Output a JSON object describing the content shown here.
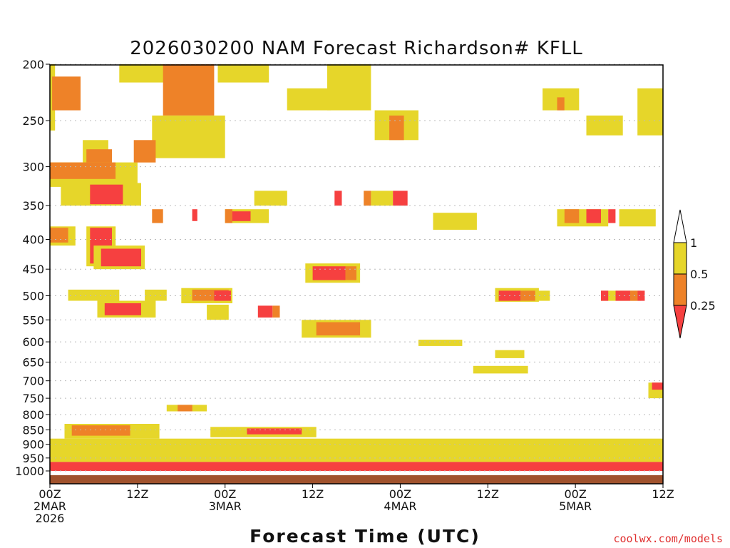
{
  "chart_data": {
    "type": "heatmap",
    "title": "2026030200 NAM Forecast Richardson# KFLL",
    "xlabel": "Forecast Time (UTC)",
    "ylabel": "",
    "credit": "coolwx.com/models",
    "x_range_hours": [
      0,
      84
    ],
    "y_pressure_range_hPa": [
      200,
      1000
    ],
    "y_ticks": [
      "200",
      "250",
      "300",
      "350",
      "400",
      "450",
      "500",
      "550",
      "600",
      "650",
      "700",
      "750",
      "800",
      "850",
      "900",
      "950",
      "1000"
    ],
    "x_ticks": [
      {
        "hour": 0,
        "lines": [
          "00Z",
          "2MAR",
          "2026"
        ]
      },
      {
        "hour": 12,
        "lines": [
          "12Z"
        ]
      },
      {
        "hour": 24,
        "lines": [
          "00Z",
          "3MAR"
        ]
      },
      {
        "hour": 36,
        "lines": [
          "12Z"
        ]
      },
      {
        "hour": 48,
        "lines": [
          "00Z",
          "4MAR"
        ]
      },
      {
        "hour": 60,
        "lines": [
          "12Z"
        ]
      },
      {
        "hour": 72,
        "lines": [
          "00Z",
          "5MAR"
        ]
      },
      {
        "hour": 84,
        "lines": [
          "12Z"
        ]
      }
    ],
    "legend": {
      "placement": "right",
      "levels": [
        "1",
        "0.5",
        "0.25"
      ],
      "bins": [
        {
          "name": "> 1",
          "color": "#ffffff"
        },
        {
          "name": "0.5 - 1",
          "color": "#e6d62a"
        },
        {
          "name": "0.25 - 0.5",
          "color": "#ee8228"
        },
        {
          "name": "< 0.25",
          "color": "#f64040"
        }
      ]
    },
    "colors": {
      "low": "#f64040",
      "mid": "#ee8228",
      "high": "#e6d62a",
      "ground": "#a0522d",
      "grid": "#bbbbbb"
    },
    "regions": [
      {
        "bin": "high",
        "t": [
          0,
          0.7
        ],
        "p": [
          200,
          260
        ]
      },
      {
        "bin": "low",
        "t": [
          0.5,
          3.6
        ],
        "p": [
          215,
          235
        ]
      },
      {
        "bin": "mid",
        "t": [
          0.3,
          4.2
        ],
        "p": [
          210,
          240
        ]
      },
      {
        "bin": "high",
        "t": [
          4.5,
          8
        ],
        "p": [
          270,
          300
        ]
      },
      {
        "bin": "mid",
        "t": [
          5,
          8.5
        ],
        "p": [
          280,
          320
        ]
      },
      {
        "bin": "high",
        "t": [
          0,
          12
        ],
        "p": [
          295,
          325
        ]
      },
      {
        "bin": "mid",
        "t": [
          0,
          9
        ],
        "p": [
          295,
          315
        ]
      },
      {
        "bin": "high",
        "t": [
          1.5,
          12.5
        ],
        "p": [
          320,
          350
        ]
      },
      {
        "bin": "low",
        "t": [
          5.5,
          10
        ],
        "p": [
          322,
          348
        ]
      },
      {
        "bin": "high",
        "t": [
          9.5,
          19
        ],
        "p": [
          200,
          215
        ]
      },
      {
        "bin": "mid",
        "t": [
          15.5,
          22.5
        ],
        "p": [
          200,
          245
        ]
      },
      {
        "bin": "high",
        "t": [
          14,
          24
        ],
        "p": [
          245,
          290
        ]
      },
      {
        "bin": "mid",
        "t": [
          11.5,
          14.5
        ],
        "p": [
          270,
          295
        ]
      },
      {
        "bin": "high",
        "t": [
          23,
          30
        ],
        "p": [
          200,
          215
        ]
      },
      {
        "bin": "high",
        "t": [
          0,
          3.5
        ],
        "p": [
          380,
          410
        ]
      },
      {
        "bin": "mid",
        "t": [
          0,
          2.5
        ],
        "p": [
          382,
          405
        ]
      },
      {
        "bin": "high",
        "t": [
          5,
          9
        ],
        "p": [
          380,
          445
        ]
      },
      {
        "bin": "low",
        "t": [
          5.5,
          8.5
        ],
        "p": [
          382,
          440
        ]
      },
      {
        "bin": "high",
        "t": [
          6,
          13
        ],
        "p": [
          410,
          450
        ]
      },
      {
        "bin": "low",
        "t": [
          7,
          12.5
        ],
        "p": [
          415,
          445
        ]
      },
      {
        "bin": "high",
        "t": [
          2.5,
          9.5
        ],
        "p": [
          488,
          510
        ]
      },
      {
        "bin": "high",
        "t": [
          6.5,
          14.5
        ],
        "p": [
          510,
          545
        ]
      },
      {
        "bin": "low",
        "t": [
          7.5,
          12.5
        ],
        "p": [
          515,
          540
        ]
      },
      {
        "bin": "high",
        "t": [
          13,
          16
        ],
        "p": [
          488,
          510
        ]
      },
      {
        "bin": "high",
        "t": [
          18,
          25
        ],
        "p": [
          485,
          515
        ]
      },
      {
        "bin": "mid",
        "t": [
          19.5,
          24.5
        ],
        "p": [
          488,
          510
        ]
      },
      {
        "bin": "low",
        "t": [
          22.5,
          24.8
        ],
        "p": [
          490,
          510
        ]
      },
      {
        "bin": "high",
        "t": [
          21.5,
          24.5
        ],
        "p": [
          518,
          550
        ]
      },
      {
        "bin": "high",
        "t": [
          24,
          30
        ],
        "p": [
          355,
          375
        ]
      },
      {
        "bin": "low",
        "t": [
          24.5,
          27.5
        ],
        "p": [
          358,
          372
        ]
      },
      {
        "bin": "mid",
        "t": [
          24,
          25
        ],
        "p": [
          355,
          375
        ]
      },
      {
        "bin": "low",
        "t": [
          19.5,
          20.2
        ],
        "p": [
          355,
          372
        ]
      },
      {
        "bin": "mid",
        "t": [
          14,
          15.5
        ],
        "p": [
          355,
          375
        ]
      },
      {
        "bin": "high",
        "t": [
          28,
          32.5
        ],
        "p": [
          330,
          350
        ]
      },
      {
        "bin": "low",
        "t": [
          28.5,
          30.5
        ],
        "p": [
          520,
          545
        ]
      },
      {
        "bin": "mid",
        "t": [
          30.5,
          31.5
        ],
        "p": [
          520,
          545
        ]
      },
      {
        "bin": "high",
        "t": [
          35,
          42.5
        ],
        "p": [
          440,
          475
        ]
      },
      {
        "bin": "low",
        "t": [
          36,
          40.5
        ],
        "p": [
          445,
          470
        ]
      },
      {
        "bin": "mid",
        "t": [
          40.5,
          42
        ],
        "p": [
          445,
          470
        ]
      },
      {
        "bin": "high",
        "t": [
          34.5,
          44
        ],
        "p": [
          550,
          590
        ]
      },
      {
        "bin": "mid",
        "t": [
          36.5,
          42.5
        ],
        "p": [
          555,
          585
        ]
      },
      {
        "bin": "high",
        "t": [
          38,
          44
        ],
        "p": [
          200,
          240
        ]
      },
      {
        "bin": "high",
        "t": [
          32.5,
          38.5
        ],
        "p": [
          220,
          240
        ]
      },
      {
        "bin": "high",
        "t": [
          44.5,
          50.5
        ],
        "p": [
          240,
          270
        ]
      },
      {
        "bin": "mid",
        "t": [
          46.5,
          48.5
        ],
        "p": [
          245,
          270
        ]
      },
      {
        "bin": "low",
        "t": [
          39,
          40
        ],
        "p": [
          330,
          350
        ]
      },
      {
        "bin": "mid",
        "t": [
          43,
          44
        ],
        "p": [
          330,
          350
        ]
      },
      {
        "bin": "high",
        "t": [
          44,
          47
        ],
        "p": [
          330,
          350
        ]
      },
      {
        "bin": "low",
        "t": [
          47,
          49
        ],
        "p": [
          330,
          350
        ]
      },
      {
        "bin": "high",
        "t": [
          52.5,
          58.5
        ],
        "p": [
          360,
          385
        ]
      },
      {
        "bin": "high",
        "t": [
          50.5,
          56.5
        ],
        "p": [
          595,
          610
        ]
      },
      {
        "bin": "high",
        "t": [
          61,
          67
        ],
        "p": [
          485,
          512
        ]
      },
      {
        "bin": "low",
        "t": [
          61.5,
          64.5
        ],
        "p": [
          490,
          510
        ]
      },
      {
        "bin": "mid",
        "t": [
          64.5,
          66.5
        ],
        "p": [
          490,
          510
        ]
      },
      {
        "bin": "high",
        "t": [
          66.5,
          68.5
        ],
        "p": [
          490,
          510
        ]
      },
      {
        "bin": "high",
        "t": [
          61,
          65
        ],
        "p": [
          620,
          640
        ]
      },
      {
        "bin": "high",
        "t": [
          58,
          65.5
        ],
        "p": [
          660,
          680
        ]
      },
      {
        "bin": "high",
        "t": [
          67.5,
          72.5
        ],
        "p": [
          220,
          240
        ]
      },
      {
        "bin": "mid",
        "t": [
          69.5,
          70.5
        ],
        "p": [
          228,
          240
        ]
      },
      {
        "bin": "high",
        "t": [
          73.5,
          78.5
        ],
        "p": [
          245,
          265
        ]
      },
      {
        "bin": "high",
        "t": [
          80.5,
          84
        ],
        "p": [
          220,
          265
        ]
      },
      {
        "bin": "high",
        "t": [
          69.5,
          76.5
        ],
        "p": [
          355,
          380
        ]
      },
      {
        "bin": "mid",
        "t": [
          70.5,
          72.5
        ],
        "p": [
          355,
          375
        ]
      },
      {
        "bin": "low",
        "t": [
          73.5,
          75.5
        ],
        "p": [
          355,
          375
        ]
      },
      {
        "bin": "low",
        "t": [
          76.5,
          77.5
        ],
        "p": [
          355,
          375
        ]
      },
      {
        "bin": "high",
        "t": [
          78,
          83
        ],
        "p": [
          355,
          380
        ]
      },
      {
        "bin": "high",
        "t": [
          75.5,
          81
        ],
        "p": [
          490,
          510
        ]
      },
      {
        "bin": "low",
        "t": [
          75.5,
          76.5
        ],
        "p": [
          490,
          510
        ]
      },
      {
        "bin": "low",
        "t": [
          77.5,
          79.5
        ],
        "p": [
          490,
          510
        ]
      },
      {
        "bin": "mid",
        "t": [
          79.5,
          80.5
        ],
        "p": [
          490,
          510
        ]
      },
      {
        "bin": "low",
        "t": [
          80.5,
          81.5
        ],
        "p": [
          490,
          510
        ]
      },
      {
        "bin": "high",
        "t": [
          82,
          84
        ],
        "p": [
          705,
          750
        ]
      },
      {
        "bin": "low",
        "t": [
          82.5,
          84
        ],
        "p": [
          705,
          725
        ]
      },
      {
        "bin": "high",
        "t": [
          16,
          21.5
        ],
        "p": [
          770,
          790
        ]
      },
      {
        "bin": "mid",
        "t": [
          17.5,
          19.5
        ],
        "p": [
          770,
          790
        ]
      },
      {
        "bin": "high",
        "t": [
          2,
          15
        ],
        "p": [
          830,
          880
        ]
      },
      {
        "bin": "mid",
        "t": [
          3,
          11
        ],
        "p": [
          835,
          870
        ]
      },
      {
        "bin": "high",
        "t": [
          22,
          36.5
        ],
        "p": [
          840,
          875
        ]
      },
      {
        "bin": "low",
        "t": [
          27,
          34.5
        ],
        "p": [
          845,
          865
        ]
      },
      {
        "bin": "high",
        "t": [
          0,
          84
        ],
        "p": [
          880,
          965
        ]
      },
      {
        "bin": "low",
        "t": [
          0,
          84
        ],
        "p": [
          965,
          1000
        ]
      }
    ]
  }
}
